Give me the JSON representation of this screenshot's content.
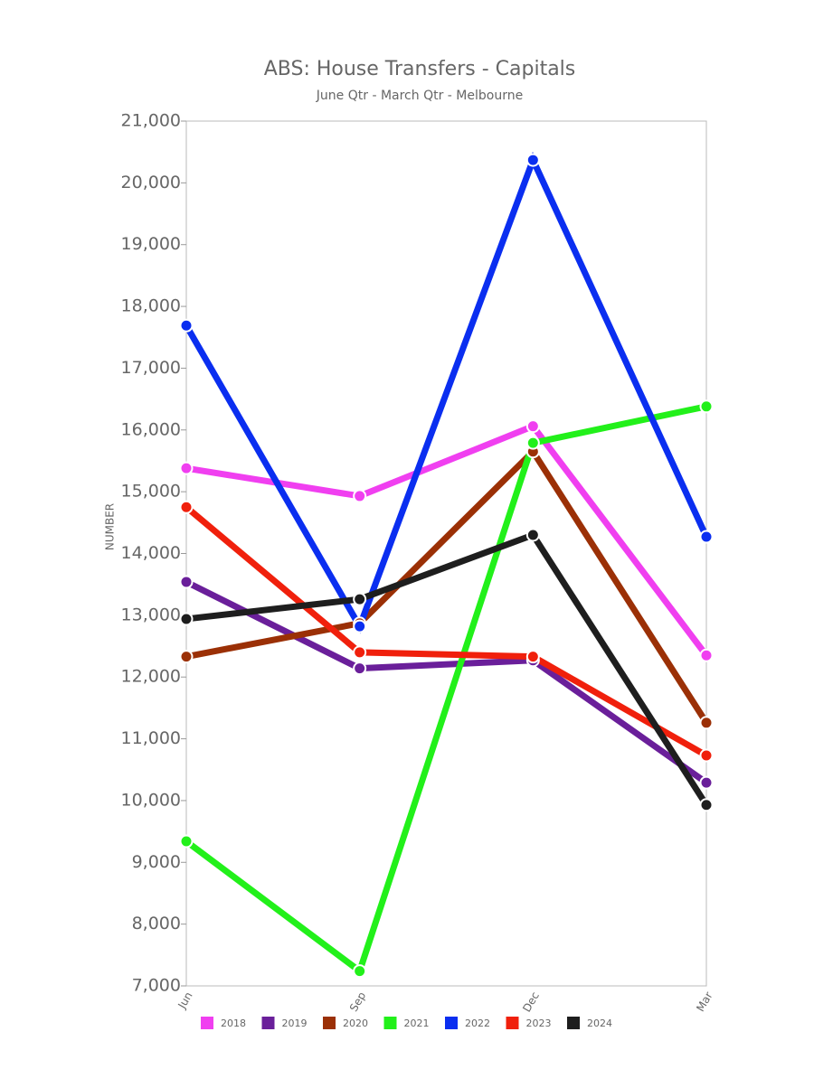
{
  "chart_data": {
    "type": "line",
    "title": "ABS: House Transfers - Capitals",
    "subtitle": "June Qtr - March Qtr - Melbourne",
    "y_label": "NUMBER",
    "categories": [
      "Jun",
      "Sep",
      "Dec",
      "Mar"
    ],
    "ylim": [
      7000,
      21000
    ],
    "yticks": [
      {
        "value": 7000,
        "label": "7,000"
      },
      {
        "value": 8000,
        "label": "8,000"
      },
      {
        "value": 9000,
        "label": "9,000"
      },
      {
        "value": 10000,
        "label": "10,000"
      },
      {
        "value": 11000,
        "label": "11,000"
      },
      {
        "value": 12000,
        "label": "12,000"
      },
      {
        "value": 13000,
        "label": "13,000"
      },
      {
        "value": 14000,
        "label": "14,000"
      },
      {
        "value": 15000,
        "label": "15,000"
      },
      {
        "value": 16000,
        "label": "16,000"
      },
      {
        "value": 17000,
        "label": "17,000"
      },
      {
        "value": 18000,
        "label": "18,000"
      },
      {
        "value": 19000,
        "label": "19,000"
      },
      {
        "value": 20000,
        "label": "20,000"
      },
      {
        "value": 21000,
        "label": "21,000"
      }
    ],
    "series": [
      {
        "name": "2018",
        "color": "#f03ff0",
        "values": [
          15380,
          14930,
          16060,
          12350
        ]
      },
      {
        "name": "2019",
        "color": "#6a1f9a",
        "values": [
          13540,
          12140,
          12270,
          10290
        ]
      },
      {
        "name": "2020",
        "color": "#9b3006",
        "values": [
          12330,
          12870,
          15650,
          11260
        ]
      },
      {
        "name": "2021",
        "color": "#22f01a",
        "values": [
          9340,
          7240,
          15790,
          16380
        ]
      },
      {
        "name": "2022",
        "color": "#0a2ef0",
        "values": [
          17690,
          12820,
          20370,
          14270
        ]
      },
      {
        "name": "2023",
        "color": "#f0200c",
        "values": [
          14750,
          12400,
          12330,
          10730
        ]
      },
      {
        "name": "2024",
        "color": "#1e1e1e",
        "values": [
          12940,
          13260,
          14300,
          9930
        ]
      }
    ]
  }
}
